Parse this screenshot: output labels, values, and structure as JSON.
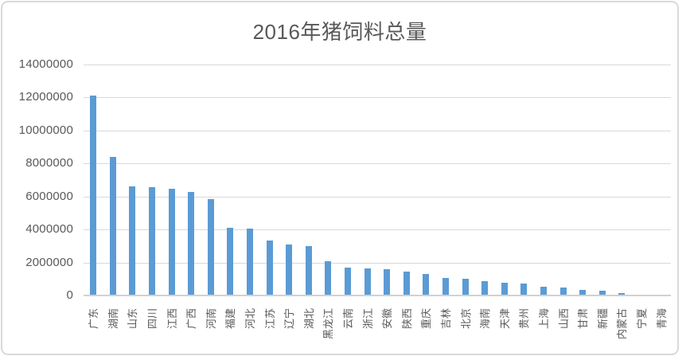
{
  "title": "2016年猪饲料总量",
  "colors": {
    "bar": "#5B9BD5",
    "gridline": "#D9D9D9",
    "axis_line": "#D1D1D1",
    "text": "#595959",
    "frame_border": "#D9D9D9",
    "background": "#FFFFFF"
  },
  "chart_data": {
    "type": "bar",
    "title": "2016年猪饲料总量",
    "categories": [
      "广东",
      "湖南",
      "山东",
      "四川",
      "江西",
      "广西",
      "河南",
      "福建",
      "河北",
      "江苏",
      "辽宁",
      "湖北",
      "黑龙江",
      "云南",
      "浙江",
      "安徽",
      "陕西",
      "重庆",
      "吉林",
      "北京",
      "海南",
      "天津",
      "贵州",
      "上海",
      "山西",
      "甘肃",
      "新疆",
      "内蒙古",
      "宁夏",
      "青海"
    ],
    "values": [
      12100000,
      8400000,
      6600000,
      6550000,
      6450000,
      6300000,
      5850000,
      4100000,
      4050000,
      3350000,
      3100000,
      3000000,
      2100000,
      1700000,
      1650000,
      1600000,
      1450000,
      1300000,
      1050000,
      1000000,
      850000,
      780000,
      720000,
      520000,
      480000,
      330000,
      270000,
      170000,
      0,
      0
    ],
    "xlabel": "",
    "ylabel": "",
    "ylim": [
      0,
      14000000
    ],
    "ytick_interval": 2000000,
    "ytick_labels_top_down": [
      "14000000",
      "12000000",
      "10000000",
      "8000000",
      "6000000",
      "4000000",
      "2000000",
      "0"
    ],
    "grid": true,
    "legend": false,
    "bar_orientation": "vertical",
    "x_label_rotation_deg": -90
  }
}
